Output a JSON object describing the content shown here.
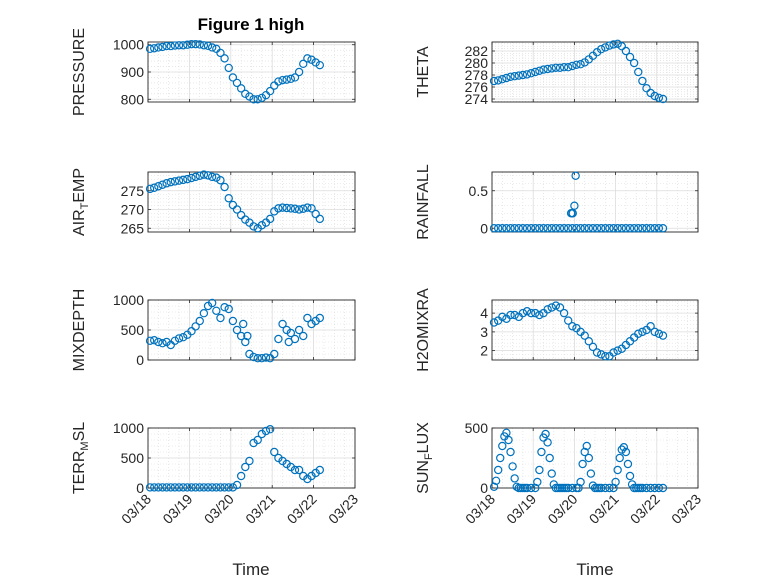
{
  "figure": {
    "title": "Figure 1 high"
  },
  "chart_data": [
    {
      "type": "scatter",
      "ylabel": "PRESSURE",
      "ylim": [
        790,
        1010
      ],
      "yticks": [
        800,
        900,
        1000
      ],
      "grid": true,
      "marker": "circle-open",
      "color": "#0072BD",
      "xlim": [
        0,
        5
      ],
      "xticks": [
        0,
        1,
        2,
        3,
        4,
        5
      ],
      "xticklabels": [
        "03/18",
        "03/19",
        "03/20",
        "03/21",
        "03/22",
        "03/23"
      ],
      "show_xticklabels": false,
      "x": [
        0.05,
        0.15,
        0.25,
        0.35,
        0.45,
        0.55,
        0.65,
        0.75,
        0.85,
        0.95,
        1.05,
        1.15,
        1.25,
        1.35,
        1.45,
        1.55,
        1.65,
        1.75,
        1.85,
        1.95,
        2.05,
        2.15,
        2.25,
        2.35,
        2.45,
        2.55,
        2.65,
        2.75,
        2.85,
        2.95,
        3.05,
        3.15,
        3.25,
        3.35,
        3.45,
        3.55,
        3.65,
        3.75,
        3.85,
        3.95,
        4.05,
        4.15
      ],
      "y": [
        985,
        987,
        990,
        992,
        995,
        995,
        997,
        998,
        998,
        1000,
        1002,
        1002,
        1001,
        998,
        996,
        990,
        985,
        970,
        950,
        915,
        880,
        860,
        840,
        820,
        810,
        800,
        800,
        805,
        815,
        830,
        850,
        865,
        870,
        872,
        875,
        880,
        900,
        930,
        950,
        945,
        935,
        925
      ]
    },
    {
      "type": "scatter",
      "ylabel": "THETA",
      "ylim": [
        273.5,
        283.5
      ],
      "yticks": [
        274,
        276,
        278,
        280,
        282
      ],
      "grid": true,
      "marker": "circle-open",
      "color": "#0072BD",
      "xlim": [
        0,
        5
      ],
      "xticks": [
        0,
        1,
        2,
        3,
        4,
        5
      ],
      "xticklabels": [
        "03/18",
        "03/19",
        "03/20",
        "03/21",
        "03/22",
        "03/23"
      ],
      "show_xticklabels": false,
      "x": [
        0.05,
        0.15,
        0.25,
        0.35,
        0.45,
        0.55,
        0.65,
        0.75,
        0.85,
        0.95,
        1.05,
        1.15,
        1.25,
        1.35,
        1.45,
        1.55,
        1.65,
        1.75,
        1.85,
        1.95,
        2.05,
        2.15,
        2.25,
        2.35,
        2.45,
        2.55,
        2.65,
        2.75,
        2.85,
        2.95,
        3.05,
        3.15,
        3.25,
        3.35,
        3.45,
        3.55,
        3.65,
        3.75,
        3.85,
        3.95,
        4.05,
        4.15
      ],
      "y": [
        277,
        277.1,
        277.3,
        277.5,
        277.7,
        277.8,
        277.9,
        278,
        278.1,
        278.3,
        278.5,
        278.7,
        278.9,
        279,
        279.1,
        279.2,
        279.2,
        279.3,
        279.3,
        279.5,
        279.7,
        279.8,
        280.1,
        280.6,
        281.2,
        281.8,
        282.3,
        282.6,
        282.9,
        283.1,
        283.2,
        282.8,
        282,
        281,
        280,
        278.5,
        277,
        275.8,
        275,
        274.5,
        274.2,
        274
      ]
    },
    {
      "type": "scatter",
      "ylabel": "AIR_TEMP",
      "ylim": [
        264,
        280
      ],
      "yticks": [
        265,
        270,
        275
      ],
      "grid": true,
      "marker": "circle-open",
      "color": "#0072BD",
      "xlim": [
        0,
        5
      ],
      "xticks": [
        0,
        1,
        2,
        3,
        4,
        5
      ],
      "xticklabels": [
        "03/18",
        "03/19",
        "03/20",
        "03/21",
        "03/22",
        "03/23"
      ],
      "show_xticklabels": false,
      "x": [
        0.05,
        0.15,
        0.25,
        0.35,
        0.45,
        0.55,
        0.65,
        0.75,
        0.85,
        0.95,
        1.05,
        1.15,
        1.25,
        1.35,
        1.45,
        1.55,
        1.65,
        1.75,
        1.85,
        1.95,
        2.05,
        2.15,
        2.25,
        2.35,
        2.45,
        2.55,
        2.65,
        2.75,
        2.85,
        2.95,
        3.05,
        3.15,
        3.25,
        3.35,
        3.45,
        3.55,
        3.65,
        3.75,
        3.85,
        3.95,
        4.05,
        4.15
      ],
      "y": [
        275.5,
        275.8,
        276.2,
        276.6,
        277,
        277.3,
        277.5,
        277.7,
        277.9,
        278.1,
        278.4,
        278.7,
        279,
        279.3,
        279.1,
        278.7,
        278.5,
        277.8,
        276,
        273,
        271.2,
        270,
        268.5,
        267.3,
        266.5,
        265.5,
        265,
        265.8,
        266.5,
        267.5,
        269.5,
        270.3,
        270.5,
        270.4,
        270.3,
        270.2,
        270,
        270.2,
        270.5,
        270.3,
        268.8,
        267.5
      ]
    },
    {
      "type": "scatter",
      "ylabel": "RAINFALL",
      "ylim": [
        -0.05,
        0.75
      ],
      "yticks": [
        0,
        0.5
      ],
      "ytickformat": [
        "0",
        "0.5"
      ],
      "grid": true,
      "marker": "circle-open",
      "color": "#0072BD",
      "xlim": [
        0,
        5
      ],
      "xticks": [
        0,
        1,
        2,
        3,
        4,
        5
      ],
      "xticklabels": [
        "03/18",
        "03/19",
        "03/20",
        "03/21",
        "03/22",
        "03/23"
      ],
      "show_xticklabels": false,
      "x": [
        0.05,
        0.15,
        0.25,
        0.35,
        0.45,
        0.55,
        0.65,
        0.75,
        0.85,
        0.95,
        1.05,
        1.15,
        1.25,
        1.35,
        1.45,
        1.55,
        1.65,
        1.75,
        1.85,
        1.95,
        2.05,
        2.15,
        2.25,
        2.35,
        2.45,
        2.55,
        2.65,
        2.75,
        2.85,
        2.95,
        3.05,
        3.15,
        3.25,
        3.35,
        3.45,
        3.55,
        3.65,
        3.75,
        3.85,
        3.95,
        4.05,
        4.15,
        1.92,
        1.96,
        2.0,
        2.03,
        1.95
      ],
      "y": [
        0,
        0,
        0,
        0,
        0,
        0,
        0,
        0,
        0,
        0,
        0,
        0,
        0,
        0,
        0,
        0,
        0,
        0,
        0,
        0,
        0,
        0,
        0,
        0,
        0,
        0,
        0,
        0,
        0,
        0,
        0,
        0,
        0,
        0,
        0,
        0,
        0,
        0,
        0,
        0,
        0,
        0,
        0.2,
        0.2,
        0.3,
        0.7,
        0.2
      ]
    },
    {
      "type": "scatter",
      "ylabel": "MIXDEPTH",
      "ylim": [
        0,
        1000
      ],
      "yticks": [
        0,
        500,
        1000
      ],
      "grid": true,
      "marker": "circle-open",
      "color": "#0072BD",
      "xlim": [
        0,
        5
      ],
      "xticks": [
        0,
        1,
        2,
        3,
        4,
        5
      ],
      "xticklabels": [
        "03/18",
        "03/19",
        "03/20",
        "03/21",
        "03/22",
        "03/23"
      ],
      "show_xticklabels": false,
      "x": [
        0.05,
        0.15,
        0.25,
        0.35,
        0.45,
        0.55,
        0.65,
        0.75,
        0.85,
        0.95,
        1.05,
        1.15,
        1.25,
        1.35,
        1.45,
        1.55,
        1.65,
        1.75,
        1.85,
        1.95,
        2.05,
        2.15,
        2.25,
        2.35,
        2.45,
        2.55,
        2.65,
        2.75,
        2.85,
        2.95,
        3.05,
        3.15,
        3.25,
        3.35,
        3.45,
        3.55,
        3.65,
        3.75,
        3.85,
        3.95,
        4.05,
        4.15,
        2.3,
        2.4,
        3.4
      ],
      "y": [
        320,
        330,
        300,
        280,
        300,
        250,
        320,
        360,
        380,
        420,
        480,
        560,
        650,
        780,
        900,
        950,
        820,
        700,
        880,
        850,
        650,
        500,
        400,
        300,
        100,
        50,
        30,
        30,
        40,
        30,
        100,
        350,
        600,
        500,
        450,
        350,
        500,
        400,
        700,
        600,
        650,
        700,
        600,
        400,
        300
      ]
    },
    {
      "type": "scatter",
      "ylabel": "H2OMIXRA",
      "ylim": [
        1.5,
        4.7
      ],
      "yticks": [
        2,
        3,
        4
      ],
      "grid": true,
      "marker": "circle-open",
      "color": "#0072BD",
      "xlim": [
        0,
        5
      ],
      "xticks": [
        0,
        1,
        2,
        3,
        4,
        5
      ],
      "xticklabels": [
        "03/18",
        "03/19",
        "03/20",
        "03/21",
        "03/22",
        "03/23"
      ],
      "show_xticklabels": false,
      "x": [
        0.05,
        0.15,
        0.25,
        0.35,
        0.45,
        0.55,
        0.65,
        0.75,
        0.85,
        0.95,
        1.05,
        1.15,
        1.25,
        1.35,
        1.45,
        1.55,
        1.65,
        1.75,
        1.85,
        1.95,
        2.05,
        2.15,
        2.25,
        2.35,
        2.45,
        2.55,
        2.65,
        2.75,
        2.85,
        2.95,
        3.05,
        3.15,
        3.25,
        3.35,
        3.45,
        3.55,
        3.65,
        3.75,
        3.85,
        3.95,
        4.05,
        4.15
      ],
      "y": [
        3.5,
        3.6,
        3.8,
        3.7,
        3.9,
        3.9,
        3.8,
        4.0,
        4.1,
        4.0,
        4.0,
        3.9,
        4.0,
        4.2,
        4.3,
        4.4,
        4.3,
        4.0,
        3.6,
        3.3,
        3.2,
        3.0,
        2.8,
        2.5,
        2.2,
        1.9,
        1.8,
        1.7,
        1.7,
        1.9,
        2.0,
        2.1,
        2.3,
        2.5,
        2.7,
        2.9,
        3.0,
        3.1,
        3.3,
        3.0,
        2.9,
        2.8
      ]
    },
    {
      "type": "scatter",
      "ylabel": "TERR_MSL",
      "ylim": [
        0,
        1000
      ],
      "yticks": [
        0,
        500,
        1000
      ],
      "grid": true,
      "marker": "circle-open",
      "color": "#0072BD",
      "xlim": [
        0,
        5
      ],
      "xticks": [
        0,
        1,
        2,
        3,
        4,
        5
      ],
      "xticklabels": [
        "03/18",
        "03/19",
        "03/20",
        "03/21",
        "03/22",
        "03/23"
      ],
      "show_xticklabels": true,
      "x": [
        0.05,
        0.15,
        0.25,
        0.35,
        0.45,
        0.55,
        0.65,
        0.75,
        0.85,
        0.95,
        1.05,
        1.15,
        1.25,
        1.35,
        1.45,
        1.55,
        1.65,
        1.75,
        1.85,
        1.95,
        2.05,
        2.15,
        2.25,
        2.35,
        2.45,
        2.55,
        2.65,
        2.75,
        2.85,
        2.95,
        3.05,
        3.15,
        3.25,
        3.35,
        3.45,
        3.55,
        3.65,
        3.75,
        3.85,
        3.95,
        4.05,
        4.15
      ],
      "y": [
        10,
        10,
        10,
        10,
        10,
        10,
        10,
        10,
        10,
        10,
        10,
        10,
        10,
        10,
        10,
        10,
        10,
        10,
        10,
        10,
        10,
        50,
        200,
        350,
        450,
        750,
        800,
        900,
        950,
        980,
        600,
        500,
        450,
        400,
        350,
        300,
        300,
        200,
        150,
        200,
        250,
        300
      ]
    },
    {
      "type": "scatter",
      "ylabel": "SUN_FLUX",
      "ylim": [
        0,
        500
      ],
      "yticks": [
        0,
        500
      ],
      "grid": true,
      "marker": "circle-open",
      "color": "#0072BD",
      "xlim": [
        0,
        5
      ],
      "xticks": [
        0,
        1,
        2,
        3,
        4,
        5
      ],
      "xticklabels": [
        "03/18",
        "03/19",
        "03/20",
        "03/21",
        "03/22",
        "03/23"
      ],
      "show_xticklabels": true,
      "x": [
        0.05,
        0.1,
        0.15,
        0.2,
        0.25,
        0.3,
        0.35,
        0.4,
        0.45,
        0.5,
        0.55,
        0.6,
        0.65,
        0.7,
        0.75,
        0.8,
        0.85,
        0.95,
        1.05,
        1.1,
        1.15,
        1.2,
        1.25,
        1.3,
        1.35,
        1.4,
        1.45,
        1.5,
        1.55,
        1.6,
        1.65,
        1.7,
        1.75,
        1.8,
        1.85,
        1.95,
        2.05,
        2.1,
        2.15,
        2.2,
        2.25,
        2.3,
        2.35,
        2.4,
        2.45,
        2.5,
        2.55,
        2.6,
        2.65,
        2.75,
        2.85,
        2.95,
        3.0,
        3.05,
        3.1,
        3.15,
        3.2,
        3.25,
        3.3,
        3.35,
        3.4,
        3.45,
        3.5,
        3.55,
        3.6,
        3.65,
        3.75,
        3.85,
        3.95,
        4.05,
        4.15
      ],
      "y": [
        10,
        60,
        150,
        250,
        350,
        430,
        460,
        400,
        300,
        180,
        80,
        10,
        0,
        0,
        0,
        0,
        0,
        0,
        0,
        50,
        150,
        300,
        420,
        450,
        380,
        250,
        120,
        30,
        0,
        0,
        0,
        0,
        0,
        0,
        0,
        0,
        0,
        0,
        50,
        200,
        300,
        350,
        250,
        120,
        20,
        0,
        0,
        0,
        0,
        0,
        0,
        0,
        50,
        150,
        250,
        320,
        340,
        300,
        200,
        100,
        30,
        0,
        0,
        0,
        0,
        0,
        0,
        0,
        0,
        0,
        0
      ]
    }
  ],
  "axes_labels": {
    "xlabel_left": "Time",
    "xlabel_right": "Time"
  }
}
